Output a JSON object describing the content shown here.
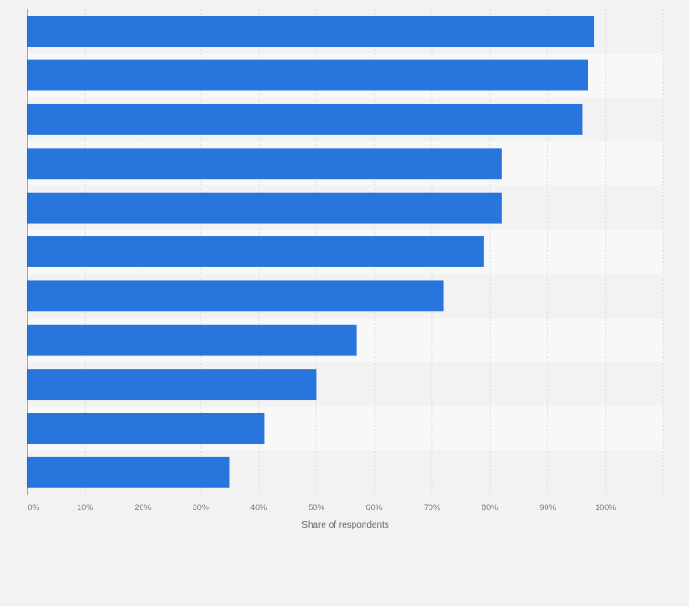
{
  "chart_data": {
    "type": "bar",
    "orientation": "horizontal",
    "categories": [
      "",
      "",
      "",
      "",
      "",
      "",
      "",
      "",
      "",
      "",
      ""
    ],
    "values": [
      98,
      97,
      96,
      82,
      82,
      79,
      72,
      57,
      50,
      41,
      35
    ],
    "xlabel": "Share of respondents",
    "ylabel": "",
    "xlim": [
      0,
      110
    ],
    "xticks": [
      "0%",
      "10%",
      "20%",
      "30%",
      "40%",
      "50%",
      "60%",
      "70%",
      "80%",
      "90%",
      "100%"
    ],
    "grid": true,
    "legend": "none",
    "colors": {
      "bar": "#2775dd",
      "band_light": "#f8f8f8",
      "band_dark": "#f2f2f2",
      "grid": "#dedede",
      "axis": "#555555",
      "tick_text": "#777777"
    }
  }
}
